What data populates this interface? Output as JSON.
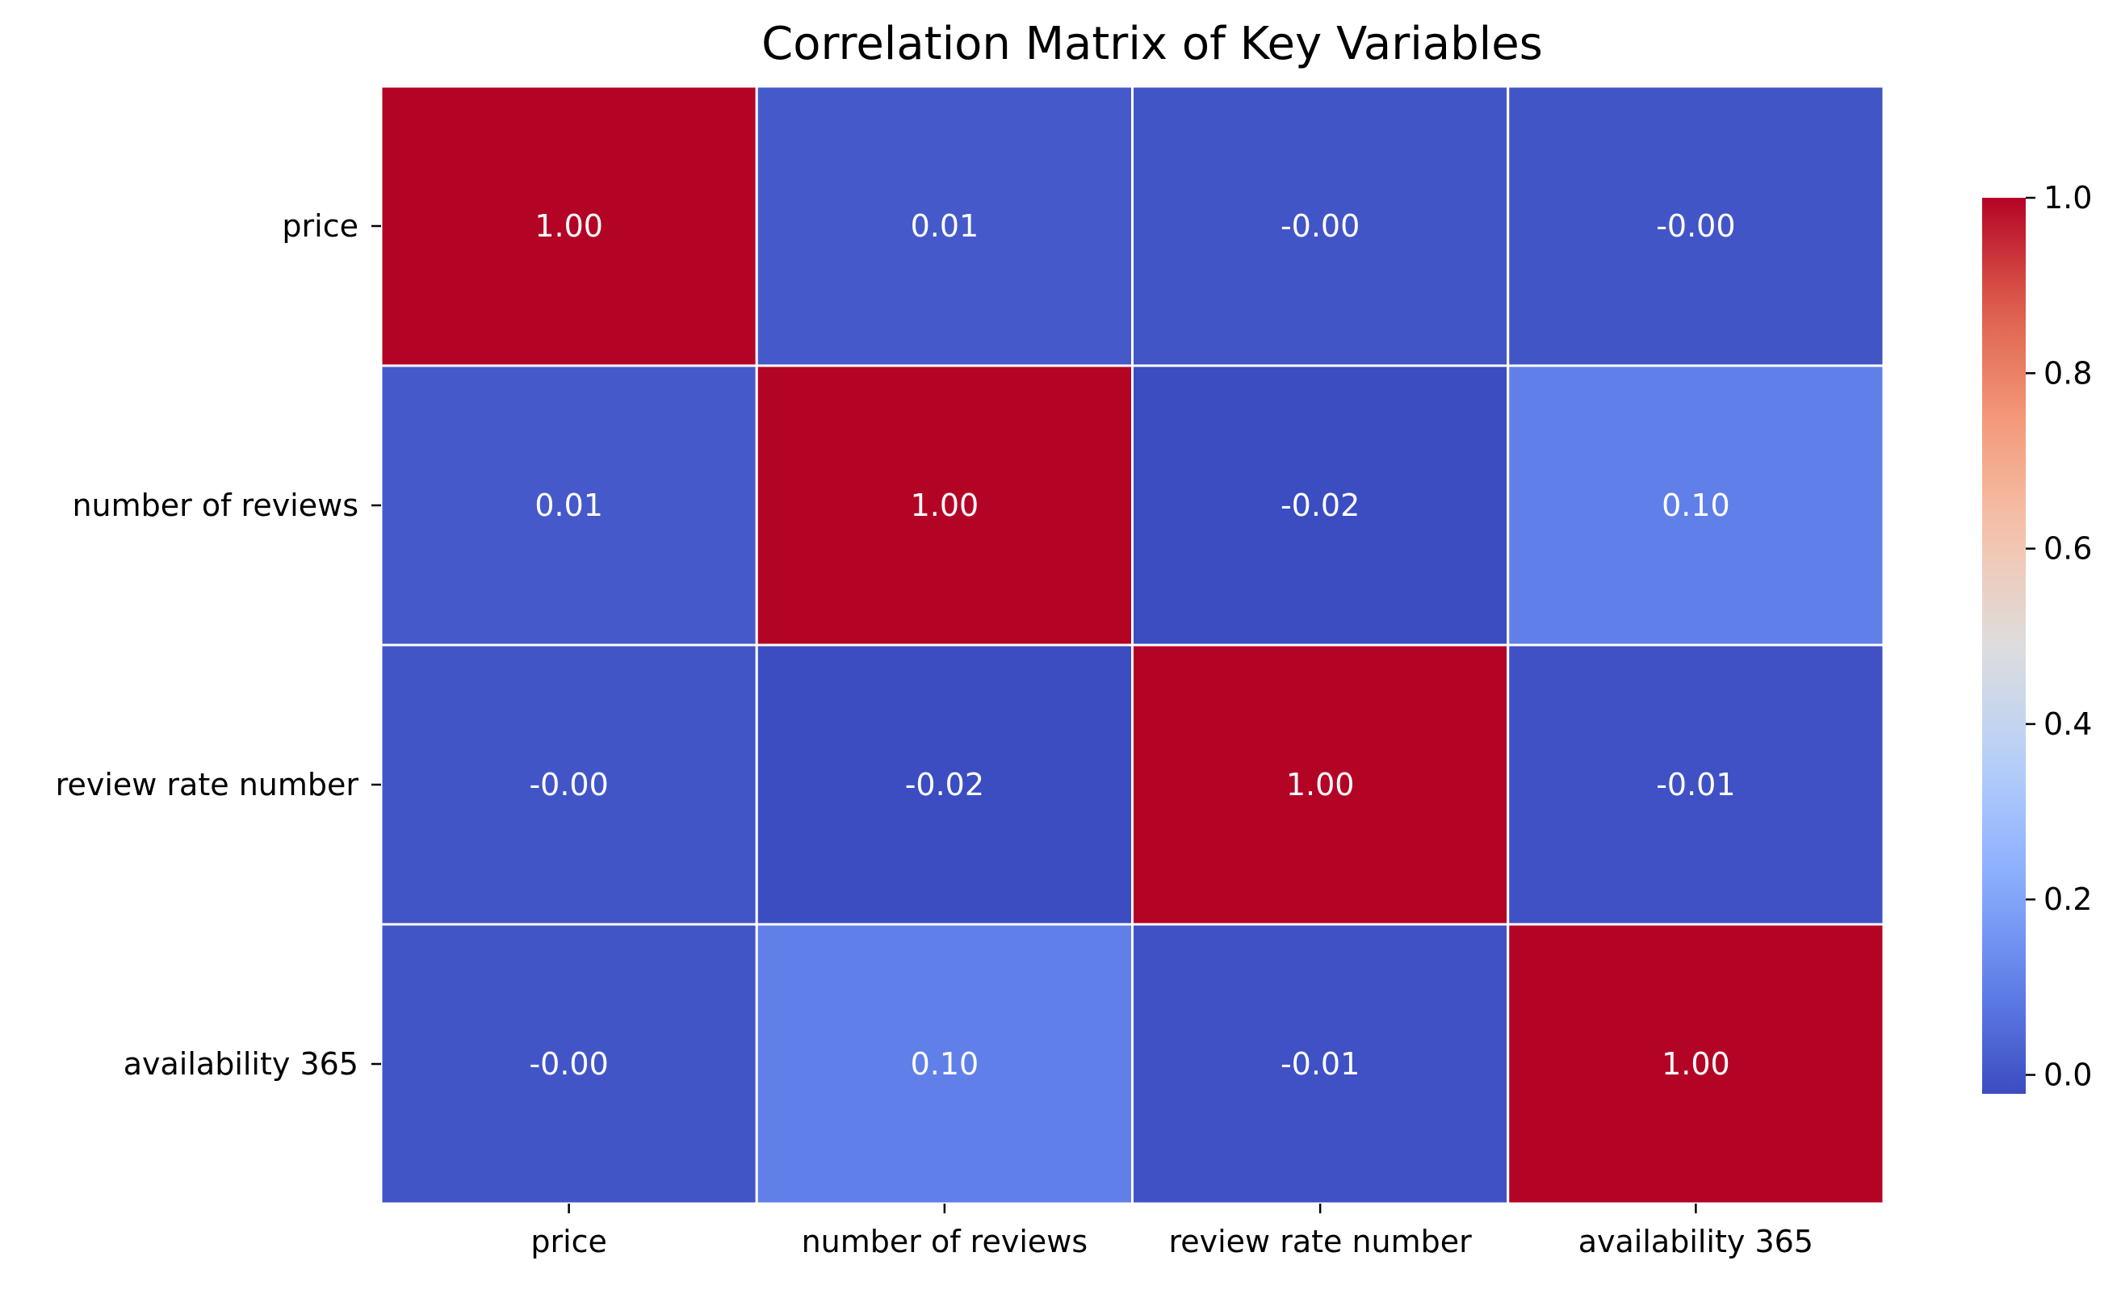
{
  "chart_data": {
    "type": "heatmap",
    "title": "Correlation Matrix of Key Variables",
    "x_labels": [
      "price",
      "number of reviews",
      "review rate number",
      "availability 365"
    ],
    "y_labels": [
      "price",
      "number of reviews",
      "review rate number",
      "availability 365"
    ],
    "values": [
      [
        1.0,
        0.01,
        -0.0,
        -0.0
      ],
      [
        0.01,
        1.0,
        -0.02,
        0.1
      ],
      [
        -0.0,
        -0.02,
        1.0,
        -0.01
      ],
      [
        -0.0,
        0.1,
        -0.01,
        1.0
      ]
    ],
    "annotations": [
      [
        "1.00",
        "0.01",
        "-0.00",
        "-0.00"
      ],
      [
        "0.01",
        "1.00",
        "-0.02",
        "0.10"
      ],
      [
        "-0.00",
        "-0.02",
        "1.00",
        "-0.01"
      ],
      [
        "-0.00",
        "0.10",
        "-0.01",
        "1.00"
      ]
    ],
    "colormap": "coolwarm",
    "vmin": -0.0216,
    "vmax": 1.0,
    "colorbar": {
      "ticks": [
        0.0,
        0.2,
        0.4,
        0.6,
        0.8,
        1.0
      ],
      "tick_labels": [
        "0.0",
        "0.2",
        "0.4",
        "0.6",
        "0.8",
        "1.0"
      ]
    },
    "cell_border_color": "#ffffff",
    "annotation_color": "#ffffff"
  }
}
